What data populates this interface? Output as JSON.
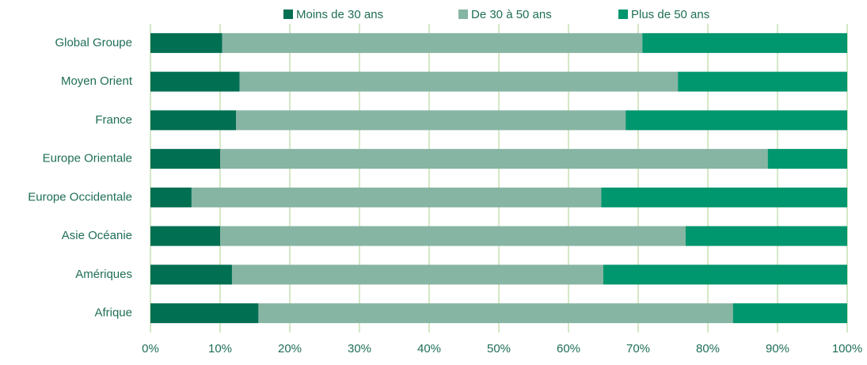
{
  "chart_data": {
    "type": "stacked-bar-horizontal",
    "categories": [
      "Global Groupe",
      "Moyen Orient",
      "France",
      "Europe Orientale",
      "Europe Occidentale",
      "Asie Océanie",
      "Amériques",
      "Afrique"
    ],
    "series": [
      {
        "name": "Moins de 30 ans",
        "color": "#006f52",
        "values": [
          10.3,
          12.8,
          12.3,
          10.0,
          5.9,
          10.0,
          11.7,
          15.5
        ]
      },
      {
        "name": "De 30 à 50 ans",
        "color": "#87b5a3",
        "values": [
          60.3,
          62.9,
          55.9,
          78.6,
          58.8,
          66.8,
          53.3,
          68.1
        ]
      },
      {
        "name": "Plus de 50 ans",
        "color": "#00966e",
        "values": [
          29.4,
          24.3,
          31.8,
          11.4,
          35.3,
          23.2,
          35.0,
          16.4
        ]
      }
    ],
    "xlim": [
      0,
      100
    ],
    "xticks": [
      {
        "value": 0,
        "label": "0%"
      },
      {
        "value": 10,
        "label": "10%"
      },
      {
        "value": 20,
        "label": "20%"
      },
      {
        "value": 30,
        "label": "30%"
      },
      {
        "value": 40,
        "label": "40%"
      },
      {
        "value": 50,
        "label": "50%"
      },
      {
        "value": 60,
        "label": "60%"
      },
      {
        "value": 70,
        "label": "70%"
      },
      {
        "value": 80,
        "label": "80%"
      },
      {
        "value": 90,
        "label": "90%"
      },
      {
        "value": 100,
        "label": "100%"
      }
    ],
    "grid": true,
    "legend": "top"
  }
}
